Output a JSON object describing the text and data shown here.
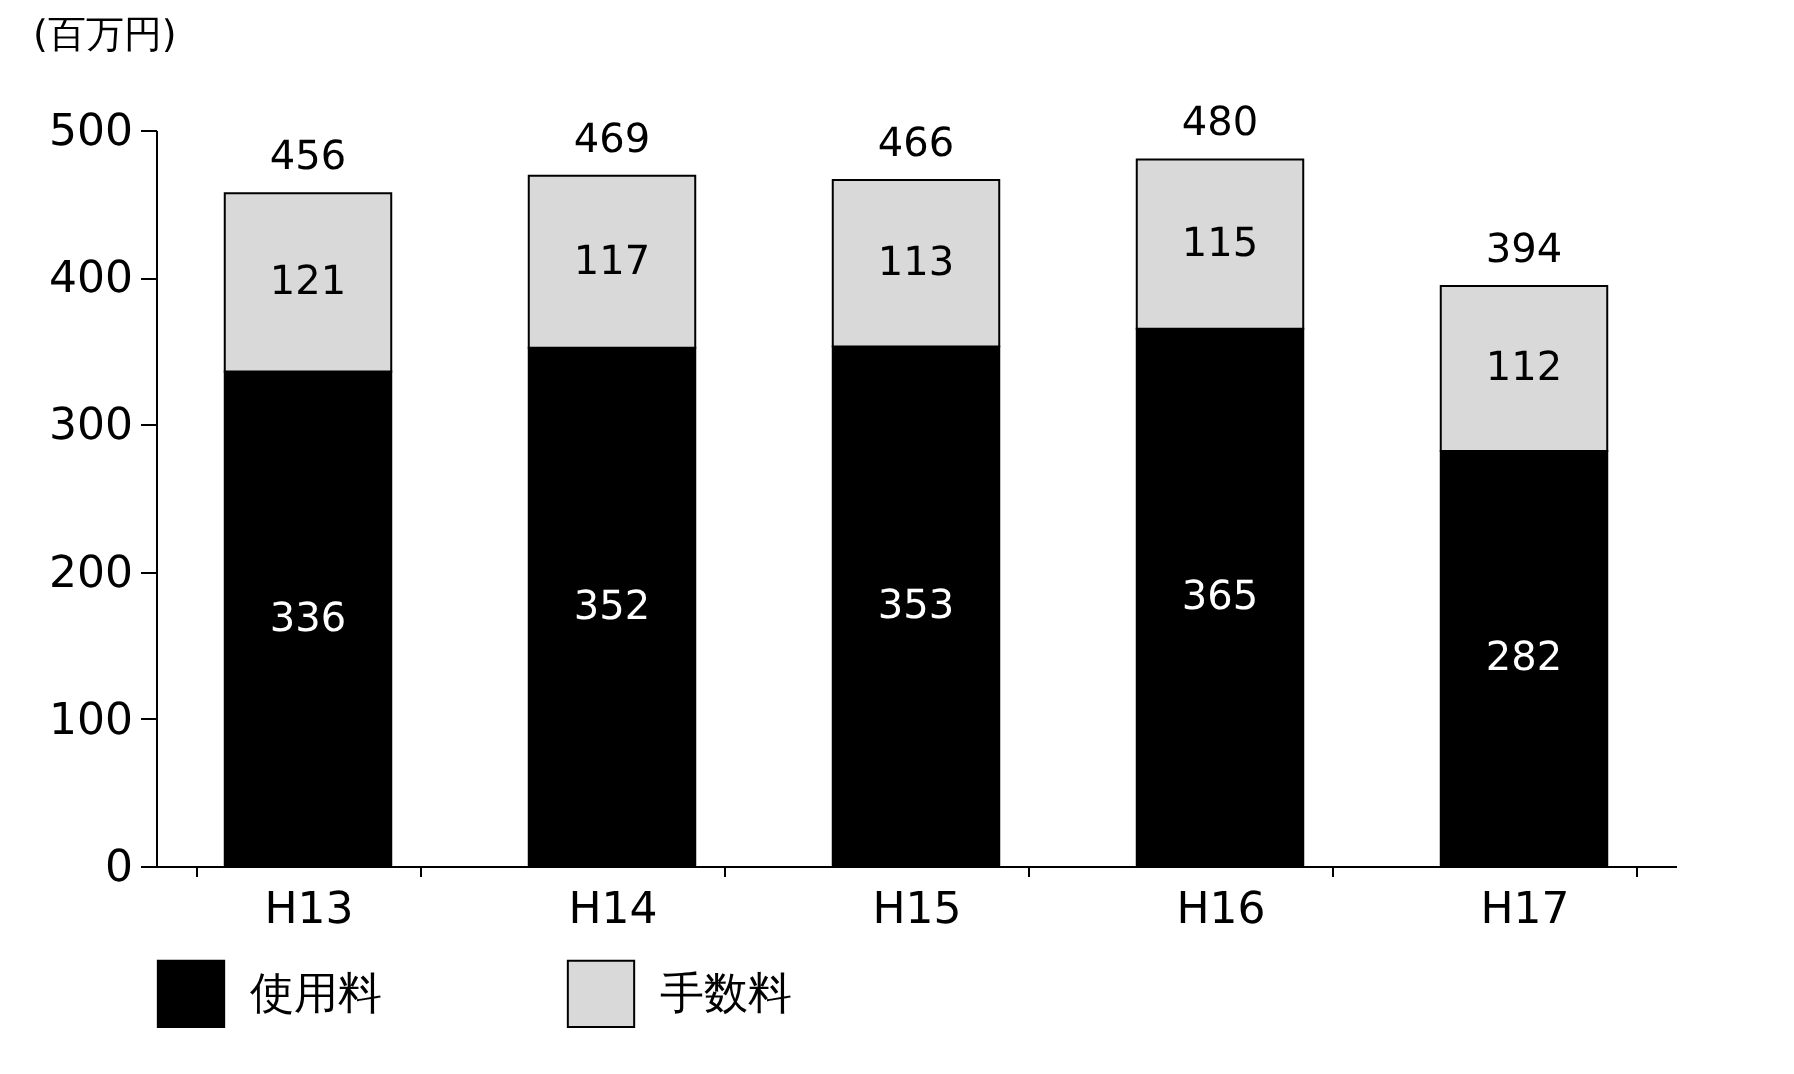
{
  "chart_data": {
    "type": "bar",
    "stacked": true,
    "ylabel": "(百万円)",
    "categories": [
      "H13",
      "H14",
      "H15",
      "H16",
      "H17"
    ],
    "series": [
      {
        "name": "使用料",
        "color": "#000000",
        "values": [
          336,
          352,
          353,
          365,
          282
        ]
      },
      {
        "name": "手数料",
        "color": "#d9d9d9",
        "values": [
          121,
          117,
          113,
          115,
          112
        ]
      }
    ],
    "totals": [
      "456",
      "469",
      "466",
      "480",
      "394"
    ],
    "ylim": [
      0,
      500
    ],
    "yticks": [
      0,
      100,
      200,
      300,
      400,
      500
    ],
    "data_labels": true,
    "legend": "bottom",
    "grid": false
  }
}
